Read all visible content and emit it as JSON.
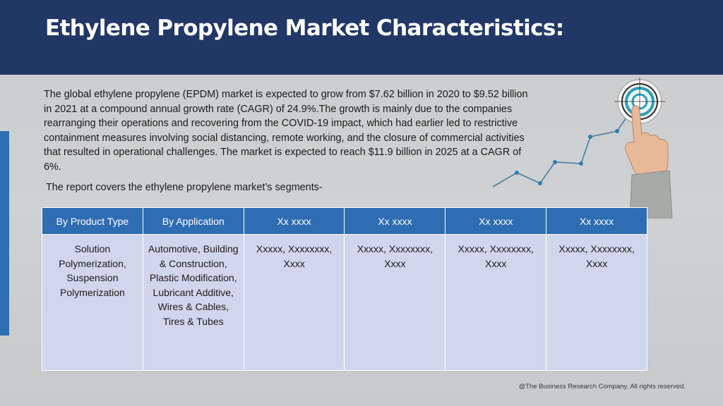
{
  "header": {
    "title": "Ethylene Propylene Market Characteristics:"
  },
  "intro": {
    "text": "The global ethylene propylene (EPDM) market is expected to grow from $7.62 billion in 2020 to $9.52 billion in 2021 at a compound annual growth rate (CAGR) of 24.9%.The growth is mainly due to the companies rearranging their operations and recovering from the COVID-19 impact, which had earlier led to restrictive containment measures involving social distancing, remote working, and the closure of commercial activities that resulted in operational challenges. The market is expected to reach $11.9 billion in 2025 at a CAGR of 6%.",
    "segments_note": "The report covers the ethylene propylene market’s segments-"
  },
  "table": {
    "headers": [
      "By Product Type",
      "By Application",
      "Xx xxxx",
      "Xx xxxx",
      "Xx xxxx",
      "Xx xxxx"
    ],
    "cells": [
      "Solution Polymerization, Suspension Polymerization",
      "Automotive, Building & Construction, Plastic Modification, Lubricant Additive, Wires & Cables, Tires & Tubes",
      "Xxxxx, Xxxxxxxx, Xxxx",
      "Xxxxx, Xxxxxxxx, Xxxx",
      "Xxxxx, Xxxxxxxx, Xxxx",
      "Xxxxx, Xxxxxxxx, Xxxx"
    ]
  },
  "footer": {
    "copyright": "@The Business Research Company. All rights reserved."
  },
  "colors": {
    "header_bg": "#213766",
    "accent_blue": "#2f6db3",
    "table_body_bg": "#d0d6ec",
    "growth_line": "#4a7ea1"
  }
}
